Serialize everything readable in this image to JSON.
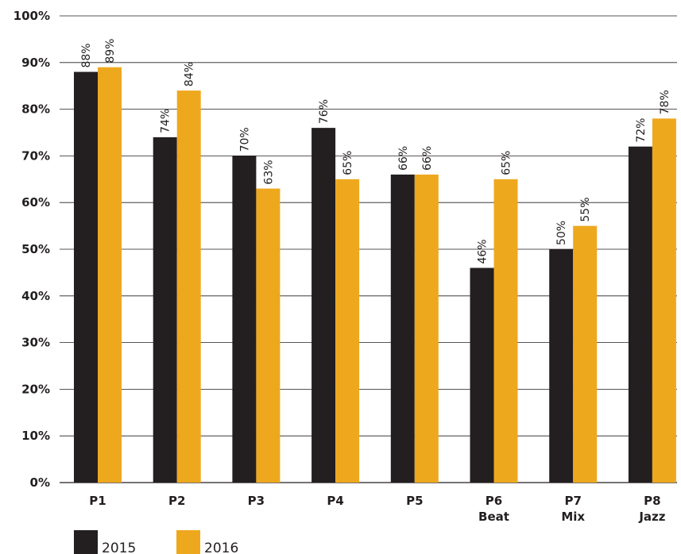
{
  "chart_data": {
    "type": "bar",
    "categories": [
      [
        "P1"
      ],
      [
        "P2"
      ],
      [
        "P3"
      ],
      [
        "P4"
      ],
      [
        "P5"
      ],
      [
        "P6",
        "Beat"
      ],
      [
        "P7",
        "Mix"
      ],
      [
        "P8",
        "Jazz"
      ]
    ],
    "series": [
      {
        "name": "2015",
        "color": "#231f20",
        "values": [
          88,
          74,
          70,
          76,
          66,
          46,
          50,
          72
        ]
      },
      {
        "name": "2016",
        "color": "#eea81e",
        "values": [
          89,
          84,
          63,
          65,
          66,
          65,
          55,
          78
        ]
      }
    ],
    "value_suffix": "%",
    "ylim": [
      0,
      100
    ],
    "yticks": [
      "0%",
      "10%",
      "20%",
      "30%",
      "40%",
      "50%",
      "60%",
      "70%",
      "80%",
      "90%",
      "100%"
    ],
    "grid": true,
    "legend_position": "bottom-left",
    "title": "",
    "xlabel": "",
    "ylabel": ""
  }
}
